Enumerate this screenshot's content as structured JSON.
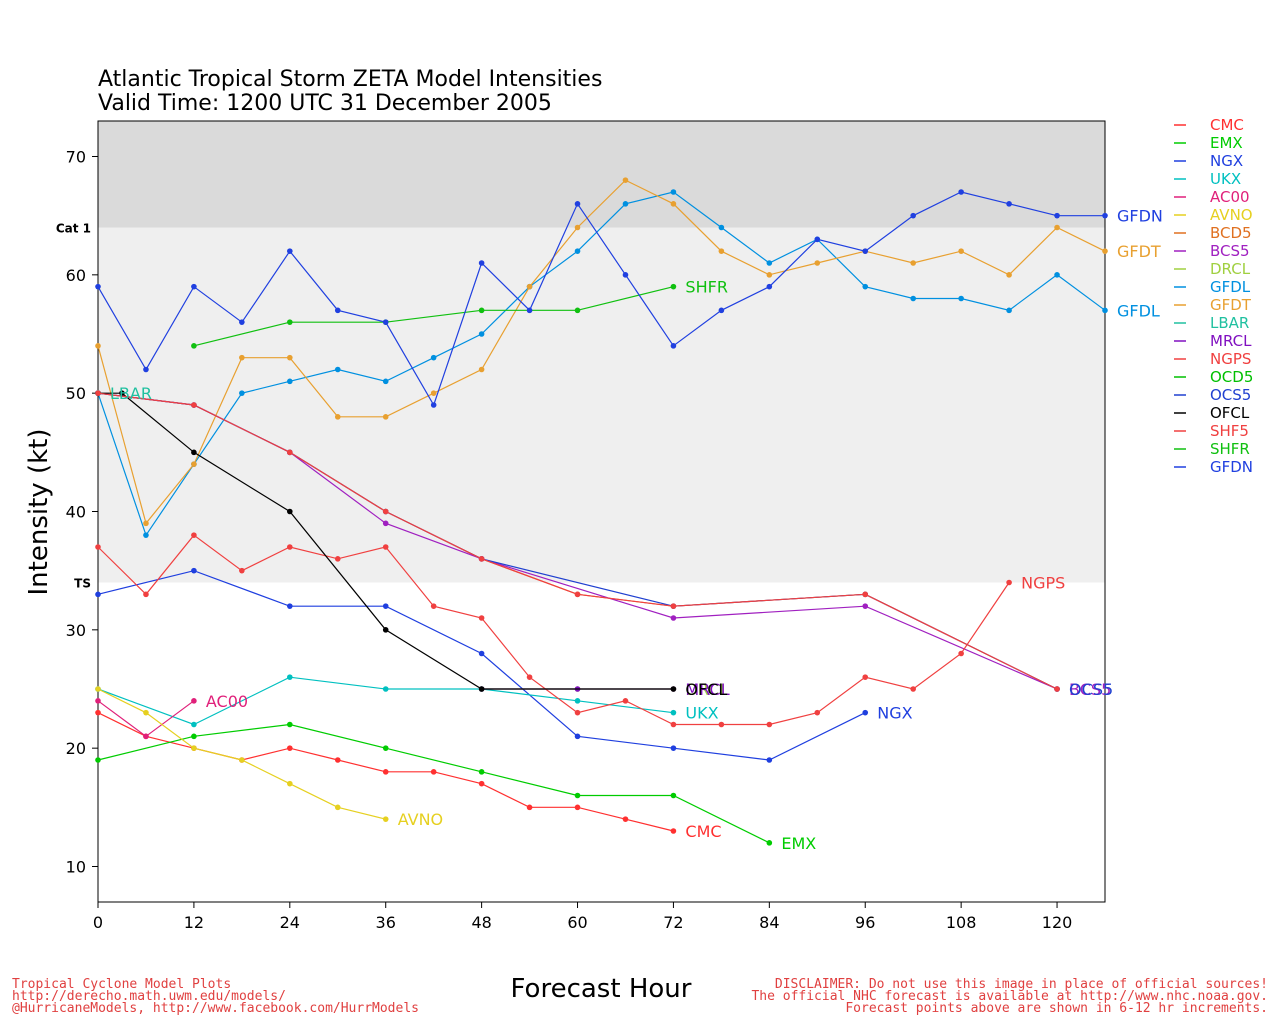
{
  "chart_data": {
    "type": "line",
    "title": "Atlantic Tropical Storm ZETA Model Intensities",
    "subtitle": "Valid Time: 1200 UTC 31 December 2005",
    "xlabel": "Forecast Hour",
    "ylabel": "Intensity (kt)",
    "xlim": [
      0,
      126
    ],
    "ylim": [
      7,
      73
    ],
    "xticks": [
      0,
      12,
      24,
      36,
      48,
      60,
      72,
      84,
      96,
      108,
      120
    ],
    "yticks": [
      10,
      20,
      30,
      40,
      50,
      60,
      70
    ],
    "bands": [
      {
        "label": "TS",
        "from": 34,
        "to": 64,
        "color": "#efefef"
      },
      {
        "label": "Cat 1",
        "from": 64,
        "to": 73,
        "color": "#dadada"
      }
    ],
    "legend_position": "right",
    "series": [
      {
        "name": "CMC",
        "color": "#ff3030",
        "end_label": "CMC",
        "x": [
          0,
          6,
          12,
          18,
          24,
          30,
          36,
          42,
          48,
          54,
          60,
          66,
          72
        ],
        "y": [
          23,
          21,
          20,
          19,
          20,
          19,
          18,
          18,
          17,
          15,
          15,
          14,
          13
        ]
      },
      {
        "name": "EMX",
        "color": "#00cc00",
        "end_label": "EMX",
        "x": [
          0,
          12,
          24,
          36,
          48,
          60,
          72,
          84
        ],
        "y": [
          19,
          21,
          22,
          20,
          18,
          16,
          16,
          12
        ]
      },
      {
        "name": "NGX",
        "color": "#1f3fdf",
        "end_label": "NGX",
        "x": [
          0,
          12,
          24,
          36,
          48,
          60,
          72,
          84,
          96
        ],
        "y": [
          33,
          35,
          32,
          32,
          28,
          21,
          20,
          19,
          23
        ]
      },
      {
        "name": "UKX",
        "color": "#00c0c0",
        "end_label": "UKX",
        "x": [
          0,
          12,
          24,
          36,
          48,
          60,
          72
        ],
        "y": [
          25,
          22,
          26,
          25,
          25,
          24,
          23
        ]
      },
      {
        "name": "AC00",
        "color": "#e0207a",
        "end_label": "AC00",
        "x": [
          0,
          6,
          12
        ],
        "y": [
          24,
          21,
          24
        ]
      },
      {
        "name": "AVNO",
        "color": "#e6d020",
        "end_label": "AVNO",
        "x": [
          0,
          6,
          12,
          18,
          24,
          30,
          36
        ],
        "y": [
          25,
          23,
          20,
          19,
          17,
          15,
          14
        ]
      },
      {
        "name": "BCD5",
        "color": "#e07020",
        "end_label": "",
        "x": [
          0,
          12,
          24,
          36,
          48,
          60,
          72,
          96,
          120
        ],
        "y": [
          50,
          49,
          45,
          40,
          36,
          33,
          32,
          33,
          25
        ]
      },
      {
        "name": "BCS5",
        "color": "#a020c0",
        "end_label": "BCS5",
        "x": [
          0,
          12,
          24,
          36,
          48,
          72,
          96,
          120
        ],
        "y": [
          50,
          49,
          45,
          39,
          36,
          31,
          32,
          25
        ]
      },
      {
        "name": "DRCL",
        "color": "#a0d040",
        "end_label": "DRCL",
        "x": [
          48,
          60,
          72
        ],
        "y": [
          25,
          25,
          25
        ]
      },
      {
        "name": "GFDL",
        "color": "#0090e0",
        "end_label": "GFDL",
        "x": [
          0,
          6,
          12,
          18,
          24,
          30,
          36,
          42,
          48,
          54,
          60,
          66,
          72,
          78,
          84,
          90,
          96,
          102,
          108,
          114,
          120,
          126
        ],
        "y": [
          50,
          38,
          44,
          50,
          51,
          52,
          51,
          53,
          55,
          59,
          62,
          66,
          67,
          64,
          61,
          63,
          59,
          58,
          58,
          57,
          60,
          57
        ]
      },
      {
        "name": "GFDT",
        "color": "#e8a030",
        "end_label": "GFDT",
        "x": [
          0,
          6,
          12,
          18,
          24,
          30,
          36,
          42,
          48,
          54,
          60,
          66,
          72,
          78,
          84,
          90,
          96,
          102,
          108,
          114,
          120,
          126
        ],
        "y": [
          54,
          39,
          44,
          53,
          53,
          48,
          48,
          50,
          52,
          59,
          64,
          68,
          66,
          62,
          60,
          61,
          62,
          61,
          62,
          60,
          64,
          62
        ]
      },
      {
        "name": "LBAR",
        "color": "#20c0a0",
        "end_label": "LBAR",
        "x": [
          0
        ],
        "y": [
          50
        ]
      },
      {
        "name": "MRCL",
        "color": "#8010c0",
        "end_label": "MRCL",
        "x": [
          48,
          60,
          72
        ],
        "y": [
          25,
          25,
          25
        ]
      },
      {
        "name": "NGPS",
        "color": "#f04040",
        "end_label": "NGPS",
        "x": [
          0,
          6,
          12,
          18,
          24,
          30,
          36,
          42,
          48,
          54,
          60,
          66,
          72,
          78,
          84,
          90,
          96,
          102,
          108,
          114
        ],
        "y": [
          37,
          33,
          38,
          35,
          37,
          36,
          37,
          32,
          31,
          26,
          23,
          24,
          22,
          22,
          22,
          23,
          26,
          25,
          28,
          34
        ]
      },
      {
        "name": "OCD5",
        "color": "#00c000",
        "end_label": "",
        "x": [],
        "y": []
      },
      {
        "name": "OCS5",
        "color": "#2040d0",
        "end_label": "OCS5",
        "x": [
          0,
          12,
          24,
          36,
          48,
          72,
          96,
          120
        ],
        "y": [
          50,
          49,
          45,
          40,
          36,
          32,
          33,
          25
        ]
      },
      {
        "name": "OFCL",
        "color": "#000000",
        "end_label": "OFCL",
        "x": [
          0,
          3,
          12,
          24,
          36,
          48,
          72
        ],
        "y": [
          50,
          50,
          45,
          40,
          30,
          25,
          25
        ]
      },
      {
        "name": "SHF5",
        "color": "#f04040",
        "end_label": "",
        "x": [
          0,
          12,
          24,
          36,
          48,
          60,
          72,
          96,
          120
        ],
        "y": [
          50,
          49,
          45,
          40,
          36,
          33,
          32,
          33,
          25
        ]
      },
      {
        "name": "SHFR",
        "color": "#10c010",
        "end_label": "SHFR",
        "x": [
          12,
          24,
          36,
          48,
          60,
          72
        ],
        "y": [
          54,
          56,
          56,
          57,
          57,
          59
        ]
      },
      {
        "name": "GFDN",
        "color": "#2040e0",
        "end_label": "GFDN",
        "x": [
          0,
          6,
          12,
          18,
          24,
          30,
          36,
          42,
          48,
          54,
          60,
          66,
          72,
          78,
          84,
          90,
          96,
          102,
          108,
          114,
          120,
          126
        ],
        "y": [
          59,
          52,
          59,
          56,
          62,
          57,
          56,
          49,
          61,
          57,
          66,
          60,
          54,
          57,
          59,
          63,
          62,
          65,
          67,
          66,
          65,
          65
        ]
      }
    ]
  },
  "footer": {
    "left": [
      "Tropical Cyclone Model Plots",
      "http://derecho.math.uwm.edu/models/",
      "@HurricaneModels, http://www.facebook.com/HurrModels"
    ],
    "right": [
      "DISCLAIMER: Do not use this image in place of official sources!",
      "The official NHC forecast is available at http://www.nhc.noaa.gov.",
      "Forecast points above are shown in 6-12 hr increments."
    ]
  }
}
